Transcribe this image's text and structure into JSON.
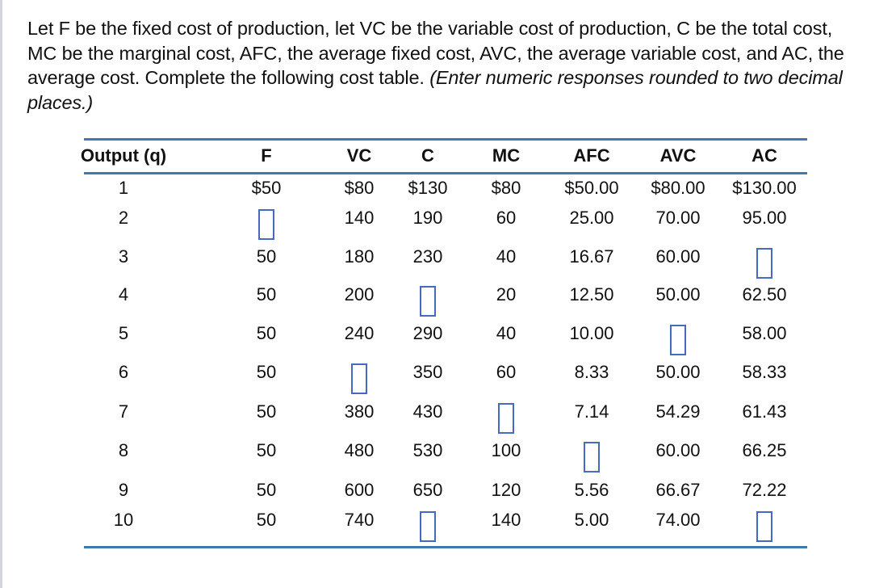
{
  "prompt": {
    "text": "Let F be the fixed cost of production, let VC be the variable cost of production, C be the total cost, MC be the marginal cost, AFC, the average fixed cost, AVC, the average variable cost, and AC, the average cost.  Complete the following cost table. ",
    "instruction": "(Enter numeric responses rounded to two decimal places.)"
  },
  "table": {
    "headers": [
      "Output (q)",
      "F",
      "VC",
      "C",
      "MC",
      "AFC",
      "AVC",
      "AC"
    ],
    "rows": [
      [
        "1",
        "$50",
        "$80",
        "$130",
        "$80",
        "$50.00",
        "$80.00",
        "$130.00"
      ],
      [
        "2",
        "",
        "140",
        "190",
        "60",
        "25.00",
        "70.00",
        "95.00"
      ],
      [
        "3",
        "50",
        "180",
        "230",
        "40",
        "16.67",
        "60.00",
        ""
      ],
      [
        "4",
        "50",
        "200",
        "",
        "20",
        "12.50",
        "50.00",
        "62.50"
      ],
      [
        "5",
        "50",
        "240",
        "290",
        "40",
        "10.00",
        "",
        "58.00"
      ],
      [
        "6",
        "50",
        "",
        "350",
        "60",
        "8.33",
        "50.00",
        "58.33"
      ],
      [
        "7",
        "50",
        "380",
        "430",
        "",
        "7.14",
        "54.29",
        "61.43"
      ],
      [
        "8",
        "50",
        "480",
        "530",
        "100",
        "",
        "60.00",
        "66.25"
      ],
      [
        "9",
        "50",
        "600",
        "650",
        "120",
        "5.56",
        "66.67",
        "72.22"
      ],
      [
        "10",
        "50",
        "740",
        "",
        "140",
        "5.00",
        "74.00",
        ""
      ]
    ],
    "blank_inputs": [
      {
        "row": 2,
        "column": "F",
        "value": ""
      },
      {
        "row": 3,
        "column": "AC",
        "value": ""
      },
      {
        "row": 4,
        "column": "C",
        "value": ""
      },
      {
        "row": 5,
        "column": "AVC",
        "value": ""
      },
      {
        "row": 6,
        "column": "VC",
        "value": ""
      },
      {
        "row": 7,
        "column": "MC",
        "value": ""
      },
      {
        "row": 8,
        "column": "AFC",
        "value": ""
      },
      {
        "row": 10,
        "column": "C",
        "value": ""
      },
      {
        "row": 10,
        "column": "AC",
        "value": ""
      }
    ]
  },
  "colors": {
    "rule": "#3d7ab4",
    "input_border": "#4769c2",
    "text": "#111111"
  }
}
